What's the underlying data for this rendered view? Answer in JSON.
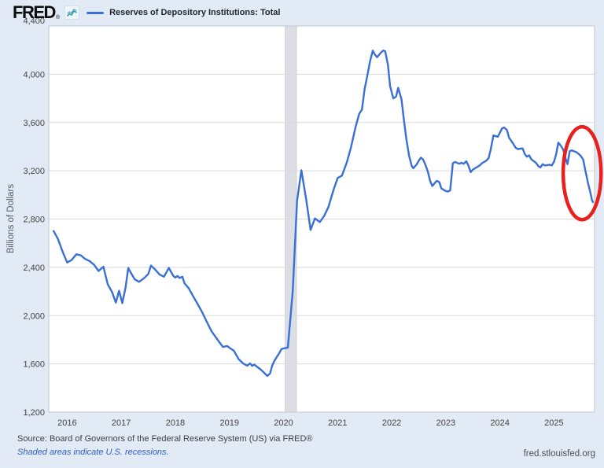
{
  "header": {
    "logo_text": "FRED",
    "registered_mark": "®",
    "legend_label": "Reserves of Depository Institutions: Total"
  },
  "footer": {
    "source_text": "Source: Board of Governors of the Federal Reserve System (US) via FRED®",
    "recession_note": "Shaded areas indicate U.S. recessions.",
    "site_text": "fred.stlouisfed.org"
  },
  "colors": {
    "page_bg": "#e2eaf5",
    "plot_bg": "#ffffff",
    "grid": "#d9d9d9",
    "plot_border": "#bfc5cd",
    "line": "#3a6fd8",
    "recession_band": "#dcdee3",
    "recession_band_border": "#c6c8cc",
    "tick_text": "#434343",
    "annotation_red": "#e8201e",
    "link_blue": "#2f5fbe"
  },
  "chart_data": {
    "type": "line",
    "title": "Reserves of Depository Institutions: Total",
    "xlabel": "",
    "ylabel": "Billions of Dollars",
    "x_domain": [
      2015.66,
      2025.75
    ],
    "y_domain": [
      1200,
      4400
    ],
    "grid": "horizontal-only",
    "legend_position": "top-left-header",
    "x_ticks": [
      {
        "t": 2016,
        "label": "2016"
      },
      {
        "t": 2017,
        "label": "2017"
      },
      {
        "t": 2018,
        "label": "2018"
      },
      {
        "t": 2019,
        "label": "2019"
      },
      {
        "t": 2020,
        "label": "2020"
      },
      {
        "t": 2021,
        "label": "2021"
      },
      {
        "t": 2022,
        "label": "2022"
      },
      {
        "t": 2023,
        "label": "2023"
      },
      {
        "t": 2024,
        "label": "2024"
      },
      {
        "t": 2025,
        "label": "2025"
      }
    ],
    "y_ticks": [
      {
        "value": 1200,
        "label": "1,200"
      },
      {
        "value": 1600,
        "label": "1,600"
      },
      {
        "value": 2000,
        "label": "2,000"
      },
      {
        "value": 2400,
        "label": "2,400"
      },
      {
        "value": 2800,
        "label": "2,800"
      },
      {
        "value": 3200,
        "label": "3,200"
      },
      {
        "value": 3600,
        "label": "3,600"
      },
      {
        "value": 4000,
        "label": "4,000"
      },
      {
        "value": 4400,
        "label": "4,400"
      }
    ],
    "recession_bands": [
      {
        "start": 2020.03,
        "end": 2020.24
      }
    ],
    "series": [
      {
        "name": "Reserves of Depository Institutions: Total",
        "units": "Billions of Dollars",
        "points": [
          [
            2015.75,
            2700
          ],
          [
            2015.83,
            2635
          ],
          [
            2015.92,
            2525
          ],
          [
            2016.0,
            2440
          ],
          [
            2016.08,
            2460
          ],
          [
            2016.17,
            2508
          ],
          [
            2016.25,
            2500
          ],
          [
            2016.33,
            2470
          ],
          [
            2016.42,
            2450
          ],
          [
            2016.5,
            2420
          ],
          [
            2016.58,
            2370
          ],
          [
            2016.67,
            2405
          ],
          [
            2016.75,
            2260
          ],
          [
            2016.83,
            2195
          ],
          [
            2016.9,
            2108
          ],
          [
            2016.96,
            2206
          ],
          [
            2017.02,
            2104
          ],
          [
            2017.08,
            2235
          ],
          [
            2017.13,
            2395
          ],
          [
            2017.17,
            2360
          ],
          [
            2017.25,
            2300
          ],
          [
            2017.33,
            2280
          ],
          [
            2017.42,
            2310
          ],
          [
            2017.5,
            2345
          ],
          [
            2017.55,
            2415
          ],
          [
            2017.63,
            2380
          ],
          [
            2017.71,
            2340
          ],
          [
            2017.79,
            2322
          ],
          [
            2017.88,
            2395
          ],
          [
            2017.96,
            2330
          ],
          [
            2018.0,
            2315
          ],
          [
            2018.04,
            2328
          ],
          [
            2018.08,
            2312
          ],
          [
            2018.13,
            2322
          ],
          [
            2018.17,
            2268
          ],
          [
            2018.25,
            2225
          ],
          [
            2018.33,
            2160
          ],
          [
            2018.42,
            2090
          ],
          [
            2018.5,
            2025
          ],
          [
            2018.58,
            1950
          ],
          [
            2018.67,
            1870
          ],
          [
            2018.75,
            1820
          ],
          [
            2018.83,
            1770
          ],
          [
            2018.88,
            1740
          ],
          [
            2018.96,
            1748
          ],
          [
            2019.0,
            1734
          ],
          [
            2019.08,
            1710
          ],
          [
            2019.17,
            1640
          ],
          [
            2019.25,
            1605
          ],
          [
            2019.33,
            1585
          ],
          [
            2019.38,
            1604
          ],
          [
            2019.42,
            1583
          ],
          [
            2019.46,
            1594
          ],
          [
            2019.5,
            1580
          ],
          [
            2019.58,
            1552
          ],
          [
            2019.63,
            1532
          ],
          [
            2019.7,
            1500
          ],
          [
            2019.75,
            1520
          ],
          [
            2019.79,
            1585
          ],
          [
            2019.83,
            1625
          ],
          [
            2019.92,
            1688
          ],
          [
            2019.96,
            1722
          ],
          [
            2020.0,
            1728
          ],
          [
            2020.08,
            1735
          ],
          [
            2020.17,
            2200
          ],
          [
            2020.25,
            2950
          ],
          [
            2020.33,
            3205
          ],
          [
            2020.42,
            2960
          ],
          [
            2020.5,
            2710
          ],
          [
            2020.58,
            2805
          ],
          [
            2020.67,
            2775
          ],
          [
            2020.75,
            2825
          ],
          [
            2020.83,
            2900
          ],
          [
            2020.92,
            3035
          ],
          [
            2021.0,
            3140
          ],
          [
            2021.08,
            3160
          ],
          [
            2021.17,
            3270
          ],
          [
            2021.25,
            3400
          ],
          [
            2021.33,
            3560
          ],
          [
            2021.4,
            3673
          ],
          [
            2021.45,
            3706
          ],
          [
            2021.5,
            3880
          ],
          [
            2021.55,
            3990
          ],
          [
            2021.6,
            4110
          ],
          [
            2021.65,
            4196
          ],
          [
            2021.69,
            4163
          ],
          [
            2021.73,
            4141
          ],
          [
            2021.79,
            4174
          ],
          [
            2021.84,
            4196
          ],
          [
            2021.88,
            4191
          ],
          [
            2021.93,
            4076
          ],
          [
            2021.97,
            3902
          ],
          [
            2022.03,
            3800
          ],
          [
            2022.08,
            3815
          ],
          [
            2022.12,
            3887
          ],
          [
            2022.18,
            3793
          ],
          [
            2022.22,
            3641
          ],
          [
            2022.27,
            3467
          ],
          [
            2022.32,
            3326
          ],
          [
            2022.37,
            3241
          ],
          [
            2022.4,
            3221
          ],
          [
            2022.46,
            3252
          ],
          [
            2022.5,
            3284
          ],
          [
            2022.54,
            3309
          ],
          [
            2022.58,
            3294
          ],
          [
            2022.63,
            3241
          ],
          [
            2022.67,
            3189
          ],
          [
            2022.71,
            3116
          ],
          [
            2022.75,
            3074
          ],
          [
            2022.79,
            3095
          ],
          [
            2022.83,
            3116
          ],
          [
            2022.88,
            3106
          ],
          [
            2022.92,
            3053
          ],
          [
            2023.0,
            3032
          ],
          [
            2023.04,
            3028
          ],
          [
            2023.08,
            3037
          ],
          [
            2023.13,
            3263
          ],
          [
            2023.17,
            3273
          ],
          [
            2023.25,
            3258
          ],
          [
            2023.29,
            3266
          ],
          [
            2023.33,
            3258
          ],
          [
            2023.38,
            3279
          ],
          [
            2023.42,
            3241
          ],
          [
            2023.46,
            3189
          ],
          [
            2023.5,
            3210
          ],
          [
            2023.58,
            3231
          ],
          [
            2023.63,
            3246
          ],
          [
            2023.67,
            3263
          ],
          [
            2023.75,
            3284
          ],
          [
            2023.79,
            3304
          ],
          [
            2023.83,
            3375
          ],
          [
            2023.88,
            3493
          ],
          [
            2023.96,
            3482
          ],
          [
            2024.0,
            3515
          ],
          [
            2024.04,
            3552
          ],
          [
            2024.08,
            3558
          ],
          [
            2024.13,
            3537
          ],
          [
            2024.17,
            3474
          ],
          [
            2024.25,
            3422
          ],
          [
            2024.29,
            3391
          ],
          [
            2024.33,
            3380
          ],
          [
            2024.42,
            3385
          ],
          [
            2024.46,
            3338
          ],
          [
            2024.5,
            3317
          ],
          [
            2024.54,
            3328
          ],
          [
            2024.58,
            3296
          ],
          [
            2024.67,
            3265
          ],
          [
            2024.71,
            3238
          ],
          [
            2024.75,
            3228
          ],
          [
            2024.79,
            3255
          ],
          [
            2024.83,
            3244
          ],
          [
            2024.92,
            3250
          ],
          [
            2024.96,
            3244
          ],
          [
            2025.0,
            3275
          ],
          [
            2025.04,
            3338
          ],
          [
            2025.08,
            3433
          ],
          [
            2025.13,
            3405
          ],
          [
            2025.17,
            3376
          ],
          [
            2025.21,
            3307
          ],
          [
            2025.25,
            3255
          ],
          [
            2025.29,
            3363
          ],
          [
            2025.33,
            3369
          ],
          [
            2025.42,
            3353
          ],
          [
            2025.46,
            3338
          ],
          [
            2025.5,
            3321
          ],
          [
            2025.54,
            3292
          ],
          [
            2025.58,
            3202
          ],
          [
            2025.63,
            3097
          ],
          [
            2025.67,
            3024
          ],
          [
            2025.7,
            2961
          ],
          [
            2025.72,
            2940
          ]
        ]
      }
    ],
    "annotation_ellipse": {
      "t": 2025.52,
      "value": 3180,
      "rx_years": 0.35,
      "ry_value": 385,
      "stroke_width": 4.5
    }
  }
}
